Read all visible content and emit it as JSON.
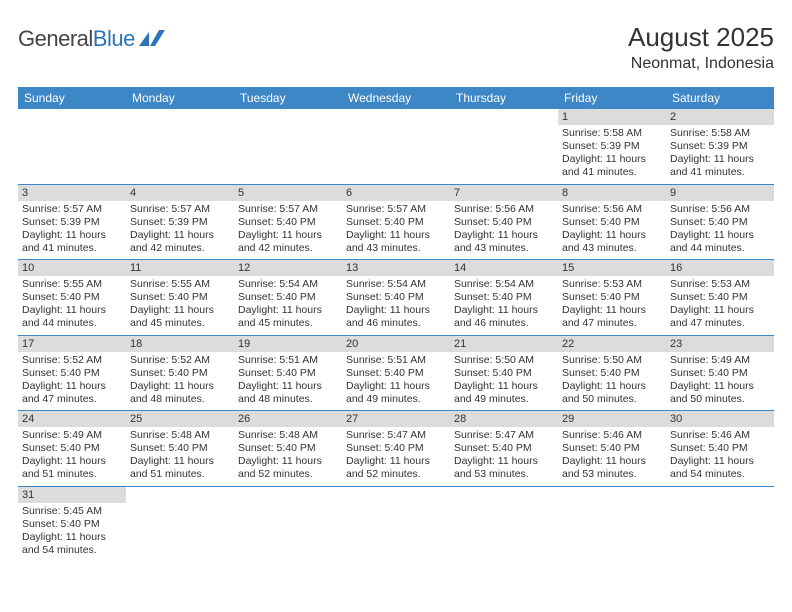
{
  "logo": {
    "text_general": "General",
    "text_blue": "Blue"
  },
  "title": "August 2025",
  "location": "Neonmat, Indonesia",
  "day_headers": [
    "Sunday",
    "Monday",
    "Tuesday",
    "Wednesday",
    "Thursday",
    "Friday",
    "Saturday"
  ],
  "colors": {
    "header_bg": "#3d87c7",
    "daynum_bg": "#dcdcdc",
    "row_border": "#3d87c7"
  },
  "weeks": [
    [
      null,
      null,
      null,
      null,
      null,
      {
        "n": "1",
        "sr": "Sunrise: 5:58 AM",
        "ss": "Sunset: 5:39 PM",
        "dl": "Daylight: 11 hours and 41 minutes."
      },
      {
        "n": "2",
        "sr": "Sunrise: 5:58 AM",
        "ss": "Sunset: 5:39 PM",
        "dl": "Daylight: 11 hours and 41 minutes."
      }
    ],
    [
      {
        "n": "3",
        "sr": "Sunrise: 5:57 AM",
        "ss": "Sunset: 5:39 PM",
        "dl": "Daylight: 11 hours and 41 minutes."
      },
      {
        "n": "4",
        "sr": "Sunrise: 5:57 AM",
        "ss": "Sunset: 5:39 PM",
        "dl": "Daylight: 11 hours and 42 minutes."
      },
      {
        "n": "5",
        "sr": "Sunrise: 5:57 AM",
        "ss": "Sunset: 5:40 PM",
        "dl": "Daylight: 11 hours and 42 minutes."
      },
      {
        "n": "6",
        "sr": "Sunrise: 5:57 AM",
        "ss": "Sunset: 5:40 PM",
        "dl": "Daylight: 11 hours and 43 minutes."
      },
      {
        "n": "7",
        "sr": "Sunrise: 5:56 AM",
        "ss": "Sunset: 5:40 PM",
        "dl": "Daylight: 11 hours and 43 minutes."
      },
      {
        "n": "8",
        "sr": "Sunrise: 5:56 AM",
        "ss": "Sunset: 5:40 PM",
        "dl": "Daylight: 11 hours and 43 minutes."
      },
      {
        "n": "9",
        "sr": "Sunrise: 5:56 AM",
        "ss": "Sunset: 5:40 PM",
        "dl": "Daylight: 11 hours and 44 minutes."
      }
    ],
    [
      {
        "n": "10",
        "sr": "Sunrise: 5:55 AM",
        "ss": "Sunset: 5:40 PM",
        "dl": "Daylight: 11 hours and 44 minutes."
      },
      {
        "n": "11",
        "sr": "Sunrise: 5:55 AM",
        "ss": "Sunset: 5:40 PM",
        "dl": "Daylight: 11 hours and 45 minutes."
      },
      {
        "n": "12",
        "sr": "Sunrise: 5:54 AM",
        "ss": "Sunset: 5:40 PM",
        "dl": "Daylight: 11 hours and 45 minutes."
      },
      {
        "n": "13",
        "sr": "Sunrise: 5:54 AM",
        "ss": "Sunset: 5:40 PM",
        "dl": "Daylight: 11 hours and 46 minutes."
      },
      {
        "n": "14",
        "sr": "Sunrise: 5:54 AM",
        "ss": "Sunset: 5:40 PM",
        "dl": "Daylight: 11 hours and 46 minutes."
      },
      {
        "n": "15",
        "sr": "Sunrise: 5:53 AM",
        "ss": "Sunset: 5:40 PM",
        "dl": "Daylight: 11 hours and 47 minutes."
      },
      {
        "n": "16",
        "sr": "Sunrise: 5:53 AM",
        "ss": "Sunset: 5:40 PM",
        "dl": "Daylight: 11 hours and 47 minutes."
      }
    ],
    [
      {
        "n": "17",
        "sr": "Sunrise: 5:52 AM",
        "ss": "Sunset: 5:40 PM",
        "dl": "Daylight: 11 hours and 47 minutes."
      },
      {
        "n": "18",
        "sr": "Sunrise: 5:52 AM",
        "ss": "Sunset: 5:40 PM",
        "dl": "Daylight: 11 hours and 48 minutes."
      },
      {
        "n": "19",
        "sr": "Sunrise: 5:51 AM",
        "ss": "Sunset: 5:40 PM",
        "dl": "Daylight: 11 hours and 48 minutes."
      },
      {
        "n": "20",
        "sr": "Sunrise: 5:51 AM",
        "ss": "Sunset: 5:40 PM",
        "dl": "Daylight: 11 hours and 49 minutes."
      },
      {
        "n": "21",
        "sr": "Sunrise: 5:50 AM",
        "ss": "Sunset: 5:40 PM",
        "dl": "Daylight: 11 hours and 49 minutes."
      },
      {
        "n": "22",
        "sr": "Sunrise: 5:50 AM",
        "ss": "Sunset: 5:40 PM",
        "dl": "Daylight: 11 hours and 50 minutes."
      },
      {
        "n": "23",
        "sr": "Sunrise: 5:49 AM",
        "ss": "Sunset: 5:40 PM",
        "dl": "Daylight: 11 hours and 50 minutes."
      }
    ],
    [
      {
        "n": "24",
        "sr": "Sunrise: 5:49 AM",
        "ss": "Sunset: 5:40 PM",
        "dl": "Daylight: 11 hours and 51 minutes."
      },
      {
        "n": "25",
        "sr": "Sunrise: 5:48 AM",
        "ss": "Sunset: 5:40 PM",
        "dl": "Daylight: 11 hours and 51 minutes."
      },
      {
        "n": "26",
        "sr": "Sunrise: 5:48 AM",
        "ss": "Sunset: 5:40 PM",
        "dl": "Daylight: 11 hours and 52 minutes."
      },
      {
        "n": "27",
        "sr": "Sunrise: 5:47 AM",
        "ss": "Sunset: 5:40 PM",
        "dl": "Daylight: 11 hours and 52 minutes."
      },
      {
        "n": "28",
        "sr": "Sunrise: 5:47 AM",
        "ss": "Sunset: 5:40 PM",
        "dl": "Daylight: 11 hours and 53 minutes."
      },
      {
        "n": "29",
        "sr": "Sunrise: 5:46 AM",
        "ss": "Sunset: 5:40 PM",
        "dl": "Daylight: 11 hours and 53 minutes."
      },
      {
        "n": "30",
        "sr": "Sunrise: 5:46 AM",
        "ss": "Sunset: 5:40 PM",
        "dl": "Daylight: 11 hours and 54 minutes."
      }
    ],
    [
      {
        "n": "31",
        "sr": "Sunrise: 5:45 AM",
        "ss": "Sunset: 5:40 PM",
        "dl": "Daylight: 11 hours and 54 minutes."
      },
      null,
      null,
      null,
      null,
      null,
      null
    ]
  ]
}
